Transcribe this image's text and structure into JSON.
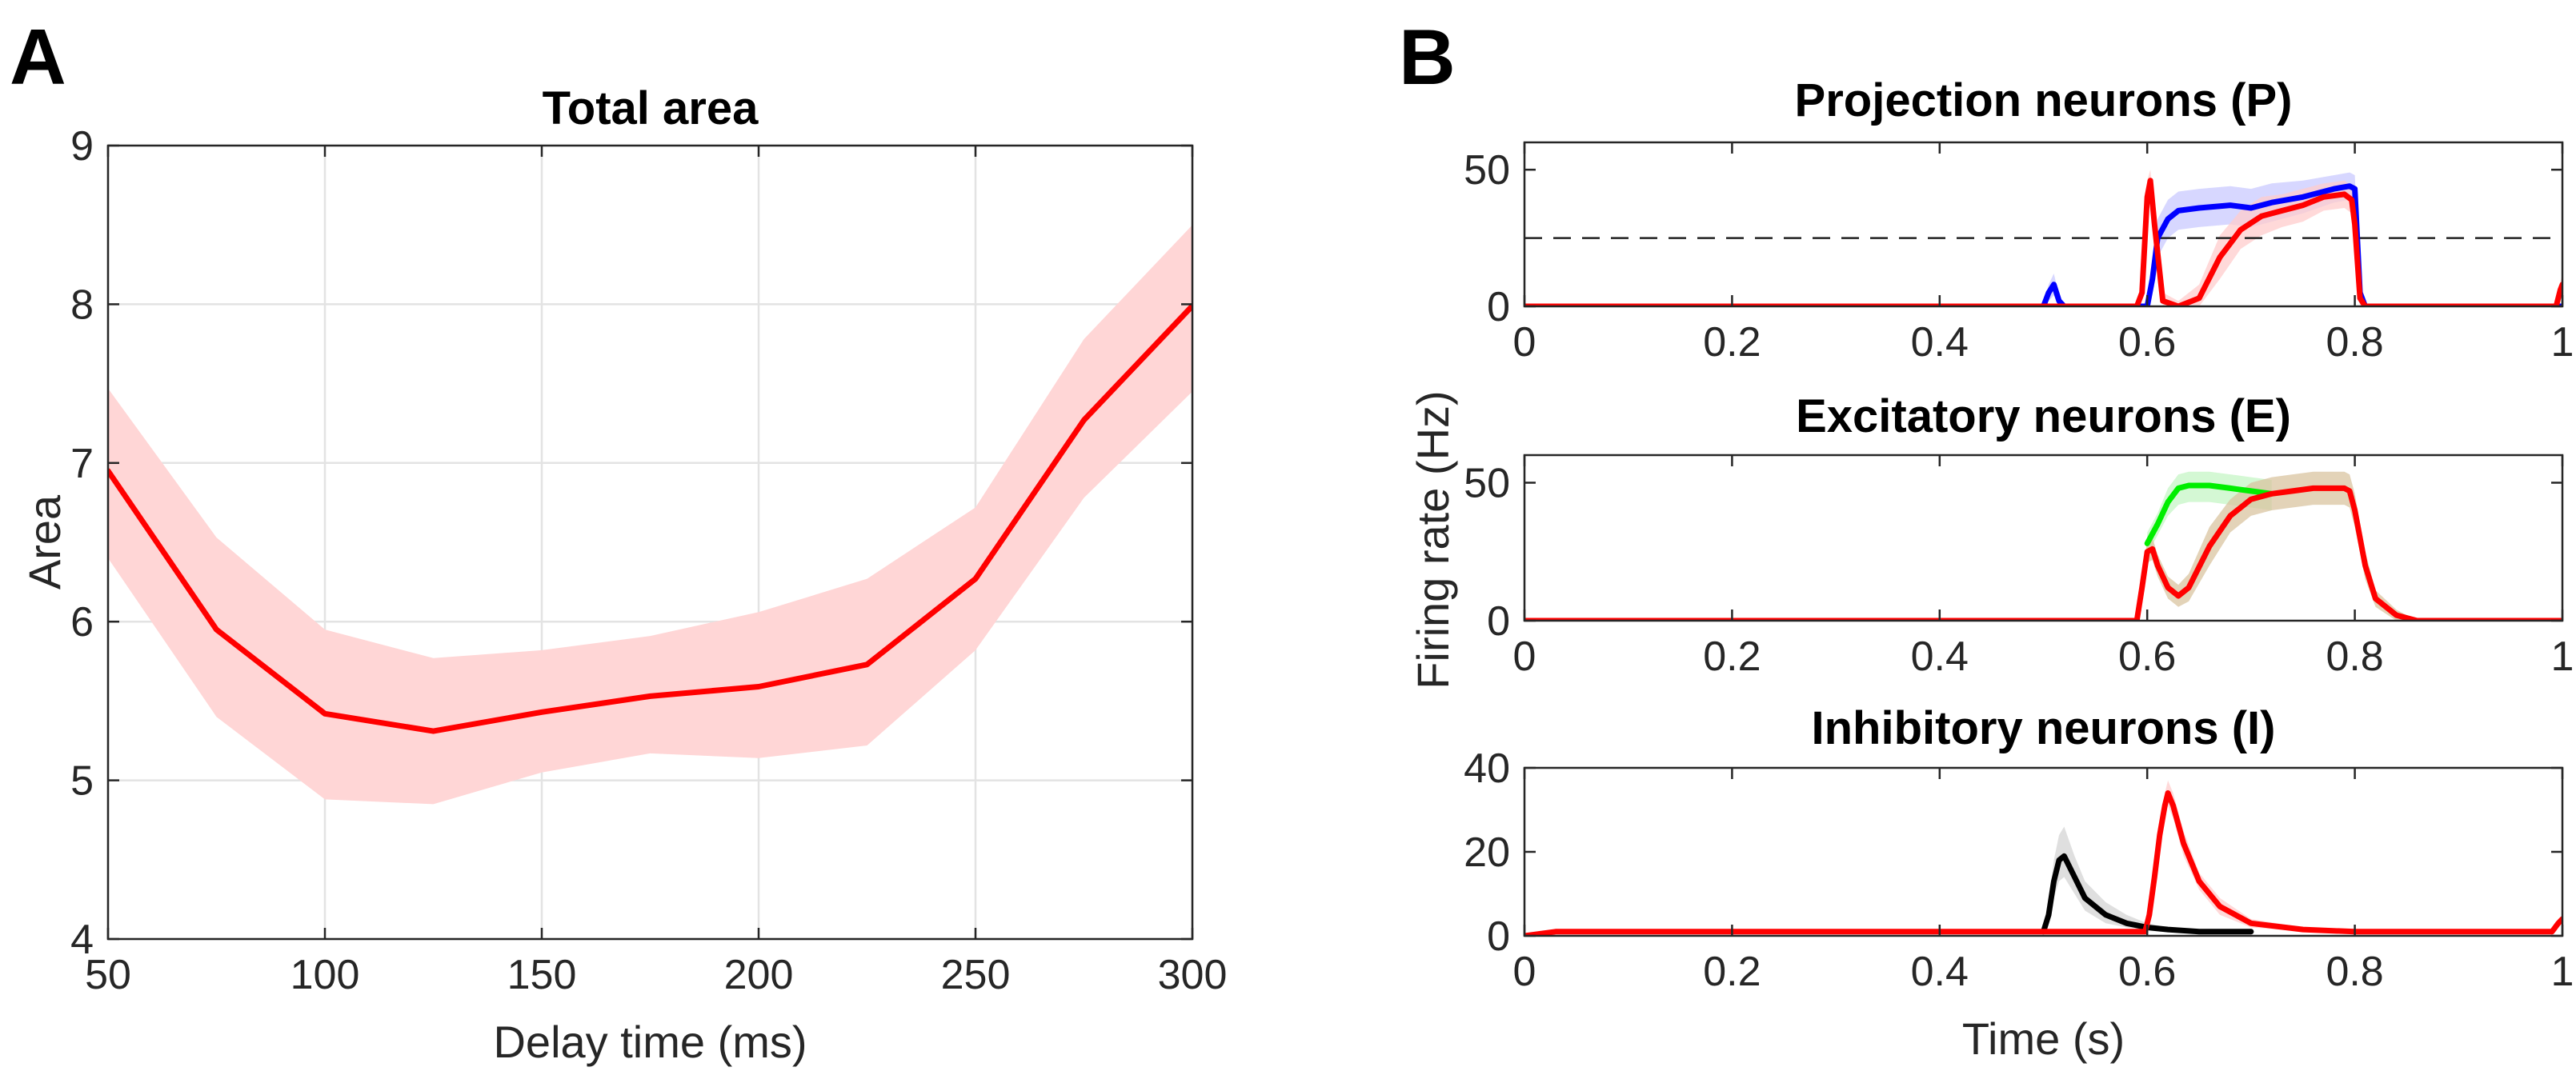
{
  "panel_labels": {
    "a": "A",
    "b": "B"
  },
  "chart_data": [
    {
      "id": "A",
      "type": "line",
      "title": "Total area",
      "xlabel": "Delay time (ms)",
      "ylabel": "Area",
      "xlim": [
        50,
        300
      ],
      "ylim": [
        4,
        9
      ],
      "grid": true,
      "xticks": [
        50,
        100,
        150,
        200,
        250,
        300
      ],
      "yticks": [
        4,
        5,
        6,
        7,
        8,
        9
      ],
      "series": [
        {
          "name": "Total area",
          "color": "#ff0000",
          "band_color": "#ffd6d6",
          "x": [
            50,
            75,
            100,
            125,
            150,
            175,
            200,
            225,
            250,
            275,
            300
          ],
          "values": [
            6.95,
            5.95,
            5.42,
            5.31,
            5.43,
            5.53,
            5.59,
            5.73,
            6.27,
            7.27,
            7.99
          ],
          "lower": [
            6.4,
            5.4,
            4.88,
            4.85,
            5.05,
            5.17,
            5.14,
            5.22,
            5.82,
            6.78,
            7.45
          ],
          "upper": [
            7.47,
            6.53,
            5.95,
            5.77,
            5.82,
            5.91,
            6.06,
            6.27,
            6.72,
            7.78,
            8.5
          ]
        }
      ]
    },
    {
      "id": "B1",
      "type": "line",
      "title": "Projection neurons (P)",
      "xlabel": "",
      "ylabel": "",
      "xlim": [
        0,
        1
      ],
      "ylim": [
        0,
        60
      ],
      "grid": false,
      "xticks": [
        0,
        0.2,
        0.4,
        0.6,
        0.8,
        1
      ],
      "yticks": [
        0,
        50
      ],
      "reference_line": {
        "y": 25,
        "style": "dashed"
      },
      "series": [
        {
          "name": "blue",
          "color": "#0000ff",
          "band_color": "#c9c9ff",
          "x": [
            0,
            0.5,
            0.505,
            0.51,
            0.515,
            0.52,
            0.6,
            0.605,
            0.61,
            0.62,
            0.63,
            0.65,
            0.68,
            0.7,
            0.72,
            0.75,
            0.78,
            0.795,
            0.8,
            0.805,
            0.81,
            0.9,
            0.998,
            1.0
          ],
          "values": [
            0,
            0,
            5,
            8,
            2,
            0,
            0,
            10,
            25,
            32,
            35,
            36,
            37,
            36,
            38,
            40,
            43,
            44,
            43,
            5,
            0,
            0,
            0,
            0
          ],
          "lower": [
            0,
            0,
            2,
            4,
            0,
            0,
            0,
            5,
            18,
            25,
            28,
            29,
            30,
            29,
            31,
            34,
            38,
            39,
            38,
            2,
            0,
            0,
            0,
            0
          ],
          "upper": [
            0,
            0,
            8,
            12,
            4,
            0,
            0,
            15,
            32,
            39,
            42,
            43,
            44,
            43,
            45,
            46,
            48,
            49,
            48,
            8,
            0,
            0,
            0,
            0
          ]
        },
        {
          "name": "red",
          "color": "#ff0000",
          "band_color": "#ffcccc",
          "x": [
            0,
            0.59,
            0.595,
            0.6,
            0.603,
            0.607,
            0.615,
            0.63,
            0.65,
            0.67,
            0.69,
            0.71,
            0.73,
            0.75,
            0.77,
            0.79,
            0.797,
            0.8,
            0.805,
            0.81,
            0.9,
            0.994,
            0.998,
            1.0
          ],
          "values": [
            0,
            0,
            5,
            40,
            46,
            30,
            2,
            0,
            3,
            18,
            28,
            33,
            35,
            37,
            40,
            41,
            39,
            30,
            3,
            0,
            0,
            0,
            6,
            8
          ],
          "lower": [
            0,
            0,
            3,
            34,
            40,
            24,
            0,
            0,
            0,
            10,
            21,
            26,
            29,
            31,
            35,
            36,
            34,
            25,
            0,
            0,
            0,
            0,
            3,
            4
          ],
          "upper": [
            0,
            0,
            7,
            46,
            50,
            36,
            5,
            2,
            8,
            26,
            35,
            40,
            41,
            43,
            45,
            46,
            44,
            35,
            6,
            0,
            0,
            0,
            9,
            12
          ]
        }
      ]
    },
    {
      "id": "B2",
      "type": "line",
      "title": "Excitatory neurons (E)",
      "xlabel": "",
      "ylabel": "Firing rate (Hz)",
      "xlim": [
        0,
        1
      ],
      "ylim": [
        0,
        60
      ],
      "grid": false,
      "xticks": [
        0,
        0.2,
        0.4,
        0.6,
        0.8,
        1
      ],
      "yticks": [
        0,
        50
      ],
      "series": [
        {
          "name": "green",
          "color": "#00ee00",
          "band_color": "#c6f5c6",
          "x": [
            0.6,
            0.61,
            0.62,
            0.63,
            0.64,
            0.66,
            0.68,
            0.7,
            0.72
          ],
          "values": [
            28,
            35,
            43,
            48,
            49,
            49,
            48,
            47,
            46
          ],
          "lower": [
            24,
            31,
            38,
            42,
            43,
            43,
            42,
            41,
            40
          ],
          "upper": [
            32,
            39,
            48,
            53,
            54,
            54,
            53,
            52,
            51
          ]
        },
        {
          "name": "red",
          "color": "#ff0000",
          "band_color": "#d9c4a0",
          "x": [
            0,
            0.59,
            0.595,
            0.6,
            0.605,
            0.61,
            0.62,
            0.63,
            0.64,
            0.66,
            0.68,
            0.7,
            0.72,
            0.74,
            0.76,
            0.78,
            0.79,
            0.795,
            0.8,
            0.81,
            0.82,
            0.84,
            0.86,
            1.0
          ],
          "values": [
            0,
            0,
            12,
            25,
            26,
            20,
            12,
            9,
            12,
            27,
            38,
            44,
            46,
            47,
            48,
            48,
            48,
            47,
            40,
            20,
            8,
            2,
            0,
            0
          ],
          "lower": [
            0,
            0,
            8,
            21,
            22,
            16,
            8,
            5,
            7,
            20,
            32,
            38,
            40,
            41,
            42,
            42,
            42,
            41,
            34,
            15,
            5,
            0,
            0,
            0
          ],
          "upper": [
            0,
            0,
            16,
            29,
            30,
            24,
            16,
            13,
            17,
            34,
            44,
            50,
            52,
            53,
            54,
            54,
            54,
            53,
            46,
            25,
            11,
            4,
            0,
            0
          ]
        }
      ]
    },
    {
      "id": "B3",
      "type": "line",
      "title": "Inhibitory neurons (I)",
      "xlabel": "Time (s)",
      "ylabel": "",
      "xlim": [
        0,
        1
      ],
      "ylim": [
        0,
        40
      ],
      "grid": false,
      "xticks": [
        0,
        0.2,
        0.4,
        0.6,
        0.8,
        1
      ],
      "yticks": [
        0,
        20,
        40
      ],
      "series": [
        {
          "name": "black",
          "color": "#000000",
          "band_color": "#d4d4d4",
          "x": [
            0.5,
            0.505,
            0.51,
            0.515,
            0.52,
            0.53,
            0.54,
            0.56,
            0.58,
            0.6,
            0.62,
            0.65,
            0.7
          ],
          "values": [
            1,
            5,
            13,
            18,
            19,
            14,
            9,
            5,
            3,
            2,
            1.5,
            1,
            1
          ],
          "lower": [
            0.5,
            3,
            9,
            13,
            14,
            10,
            6,
            3,
            2,
            1.5,
            1,
            1,
            1
          ],
          "upper": [
            1.5,
            8,
            18,
            24,
            26,
            19,
            13,
            8,
            5,
            3,
            2,
            1,
            1
          ]
        },
        {
          "name": "red",
          "color": "#ff0000",
          "band_color": "#ffcccc",
          "x": [
            0,
            0.03,
            0.598,
            0.602,
            0.607,
            0.612,
            0.617,
            0.62,
            0.625,
            0.635,
            0.65,
            0.67,
            0.7,
            0.75,
            0.8,
            0.99,
            0.996,
            1.0
          ],
          "values": [
            0,
            1,
            1,
            5,
            14,
            24,
            31,
            34,
            31,
            22,
            13,
            7,
            3,
            1.5,
            1,
            1,
            3,
            4
          ],
          "lower": [
            0,
            1,
            1,
            4,
            12,
            22,
            28,
            31,
            28,
            19,
            11,
            5,
            2,
            1,
            1,
            1,
            2,
            3
          ],
          "upper": [
            0,
            1,
            1,
            6,
            16,
            27,
            34,
            37,
            34,
            25,
            15,
            9,
            4,
            2,
            1,
            1,
            4,
            5
          ]
        }
      ]
    }
  ]
}
